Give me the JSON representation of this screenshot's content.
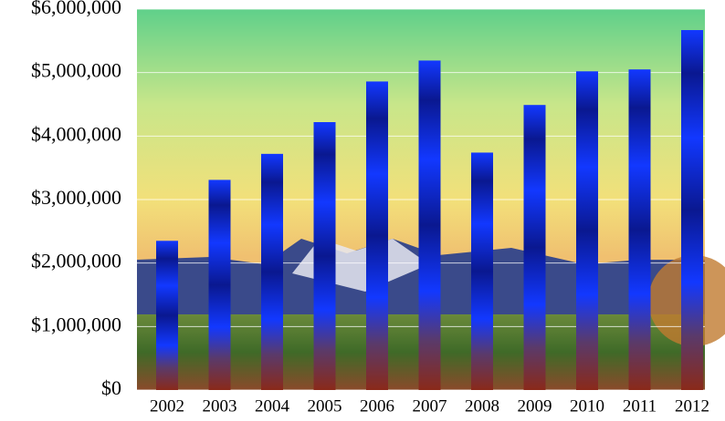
{
  "chart_data": {
    "type": "bar",
    "categories": [
      "2002",
      "2003",
      "2004",
      "2005",
      "2006",
      "2007",
      "2008",
      "2009",
      "2010",
      "2011",
      "2012"
    ],
    "values": [
      2350000,
      3310000,
      3720000,
      4220000,
      4860000,
      5190000,
      3740000,
      4490000,
      5020000,
      5050000,
      5670000
    ],
    "color": "#1238ff",
    "ylim": [
      0,
      6000000
    ],
    "yticks": [
      {
        "value": 0,
        "label": "$0"
      },
      {
        "value": 1000000,
        "label": "$1,000,000"
      },
      {
        "value": 2000000,
        "label": "$2,000,000"
      },
      {
        "value": 3000000,
        "label": "$3,000,000"
      },
      {
        "value": 4000000,
        "label": "$4,000,000"
      },
      {
        "value": 5000000,
        "label": "$5,000,000"
      },
      {
        "value": 6000000,
        "label": "$6,000,000"
      }
    ],
    "grid": true
  }
}
